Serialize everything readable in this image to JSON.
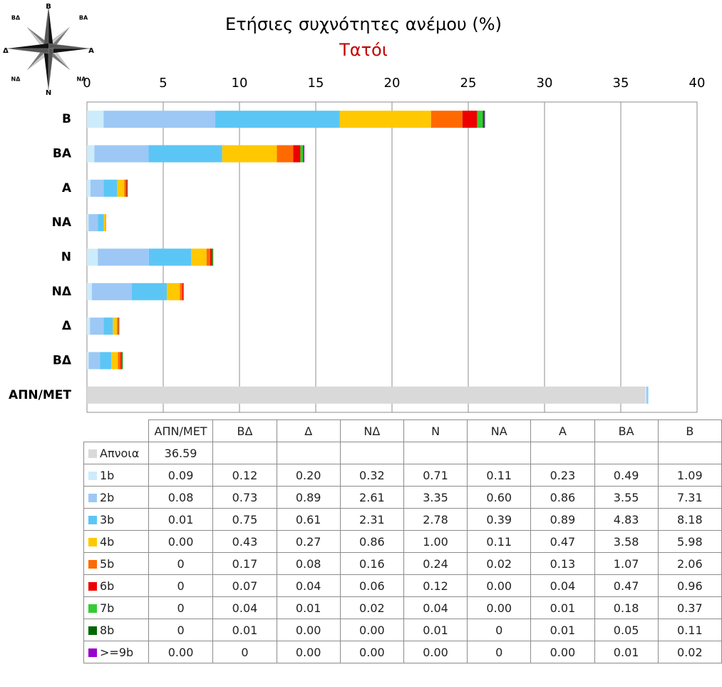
{
  "title": "Ετήσιες συχνότητες ανέμου (%)",
  "subtitle": "Τατόι",
  "compass_labels": [
    "Β",
    "ΒΑ",
    "Α",
    "ΝΑ",
    "Ν",
    "ΝΔ",
    "Δ",
    "ΒΔ"
  ],
  "chart_data": {
    "type": "bar",
    "orientation": "horizontal",
    "stacked": true,
    "categories": [
      "Β",
      "ΒΑ",
      "Α",
      "ΝΑ",
      "Ν",
      "ΝΔ",
      "Δ",
      "ΒΔ",
      "ΑΠΝ/ΜΕΤ"
    ],
    "xlim": [
      0,
      40
    ],
    "xticks": [
      0,
      5,
      10,
      15,
      20,
      25,
      30,
      35,
      40
    ],
    "grid": true,
    "series": [
      {
        "name": "Απνοια",
        "color": "#d9d9d9",
        "values": [
          0,
          0,
          0,
          0,
          0,
          0,
          0,
          0,
          36.59
        ]
      },
      {
        "name": "1b",
        "color": "#ccecfc",
        "values": [
          1.09,
          0.49,
          0.23,
          0.11,
          0.71,
          0.32,
          0.2,
          0.12,
          0.09
        ]
      },
      {
        "name": "2b",
        "color": "#9dc8f5",
        "values": [
          7.31,
          3.55,
          0.86,
          0.6,
          3.35,
          2.61,
          0.89,
          0.73,
          0.08
        ]
      },
      {
        "name": "3b",
        "color": "#5bc6f5",
        "values": [
          8.18,
          4.83,
          0.89,
          0.39,
          2.78,
          2.31,
          0.61,
          0.75,
          0.01
        ]
      },
      {
        "name": "4b",
        "color": "#ffc800",
        "values": [
          5.98,
          3.58,
          0.47,
          0.11,
          1.0,
          0.86,
          0.27,
          0.43,
          0.0
        ]
      },
      {
        "name": "5b",
        "color": "#ff6a00",
        "values": [
          2.06,
          1.07,
          0.13,
          0.02,
          0.24,
          0.16,
          0.08,
          0.17,
          0
        ]
      },
      {
        "name": "6b",
        "color": "#ee0000",
        "values": [
          0.96,
          0.47,
          0.04,
          0.0,
          0.12,
          0.06,
          0.04,
          0.07,
          0
        ]
      },
      {
        "name": "7b",
        "color": "#33cc33",
        "values": [
          0.37,
          0.18,
          0.01,
          0.0,
          0.04,
          0.02,
          0.01,
          0.04,
          0
        ]
      },
      {
        "name": "8b",
        "color": "#006600",
        "values": [
          0.11,
          0.05,
          0.01,
          0,
          0.01,
          0.0,
          0.0,
          0.01,
          0
        ]
      },
      {
        "name": ">=9b",
        "color": "#9900cc",
        "values": [
          0.02,
          0.01,
          0.0,
          0,
          0.0,
          0.0,
          0.0,
          0,
          0.0
        ]
      }
    ]
  },
  "table": {
    "columns": [
      "ΑΠΝ/ΜΕΤ",
      "ΒΔ",
      "Δ",
      "ΝΔ",
      "Ν",
      "ΝΑ",
      "Α",
      "ΒΑ",
      "Β"
    ],
    "rows": [
      {
        "label": "Απνοια",
        "color": "#d9d9d9",
        "cells": [
          "36.59",
          "",
          "",
          "",
          "",
          "",
          "",
          "",
          ""
        ]
      },
      {
        "label": "1b",
        "color": "#ccecfc",
        "cells": [
          "0.09",
          "0.12",
          "0.20",
          "0.32",
          "0.71",
          "0.11",
          "0.23",
          "0.49",
          "1.09"
        ]
      },
      {
        "label": "2b",
        "color": "#9dc8f5",
        "cells": [
          "0.08",
          "0.73",
          "0.89",
          "2.61",
          "3.35",
          "0.60",
          "0.86",
          "3.55",
          "7.31"
        ]
      },
      {
        "label": "3b",
        "color": "#5bc6f5",
        "cells": [
          "0.01",
          "0.75",
          "0.61",
          "2.31",
          "2.78",
          "0.39",
          "0.89",
          "4.83",
          "8.18"
        ]
      },
      {
        "label": "4b",
        "color": "#ffc800",
        "cells": [
          "0.00",
          "0.43",
          "0.27",
          "0.86",
          "1.00",
          "0.11",
          "0.47",
          "3.58",
          "5.98"
        ]
      },
      {
        "label": "5b",
        "color": "#ff6a00",
        "cells": [
          "0",
          "0.17",
          "0.08",
          "0.16",
          "0.24",
          "0.02",
          "0.13",
          "1.07",
          "2.06"
        ]
      },
      {
        "label": "6b",
        "color": "#ee0000",
        "cells": [
          "0",
          "0.07",
          "0.04",
          "0.06",
          "0.12",
          "0.00",
          "0.04",
          "0.47",
          "0.96"
        ]
      },
      {
        "label": "7b",
        "color": "#33cc33",
        "cells": [
          "0",
          "0.04",
          "0.01",
          "0.02",
          "0.04",
          "0.00",
          "0.01",
          "0.18",
          "0.37"
        ]
      },
      {
        "label": "8b",
        "color": "#006600",
        "cells": [
          "0",
          "0.01",
          "0.00",
          "0.00",
          "0.01",
          "0",
          "0.01",
          "0.05",
          "0.11"
        ]
      },
      {
        "label": ">=9b",
        "color": "#9900cc",
        "cells": [
          "0.00",
          "0",
          "0.00",
          "0.00",
          "0.00",
          "0",
          "0.00",
          "0.01",
          "0.02"
        ]
      }
    ]
  }
}
